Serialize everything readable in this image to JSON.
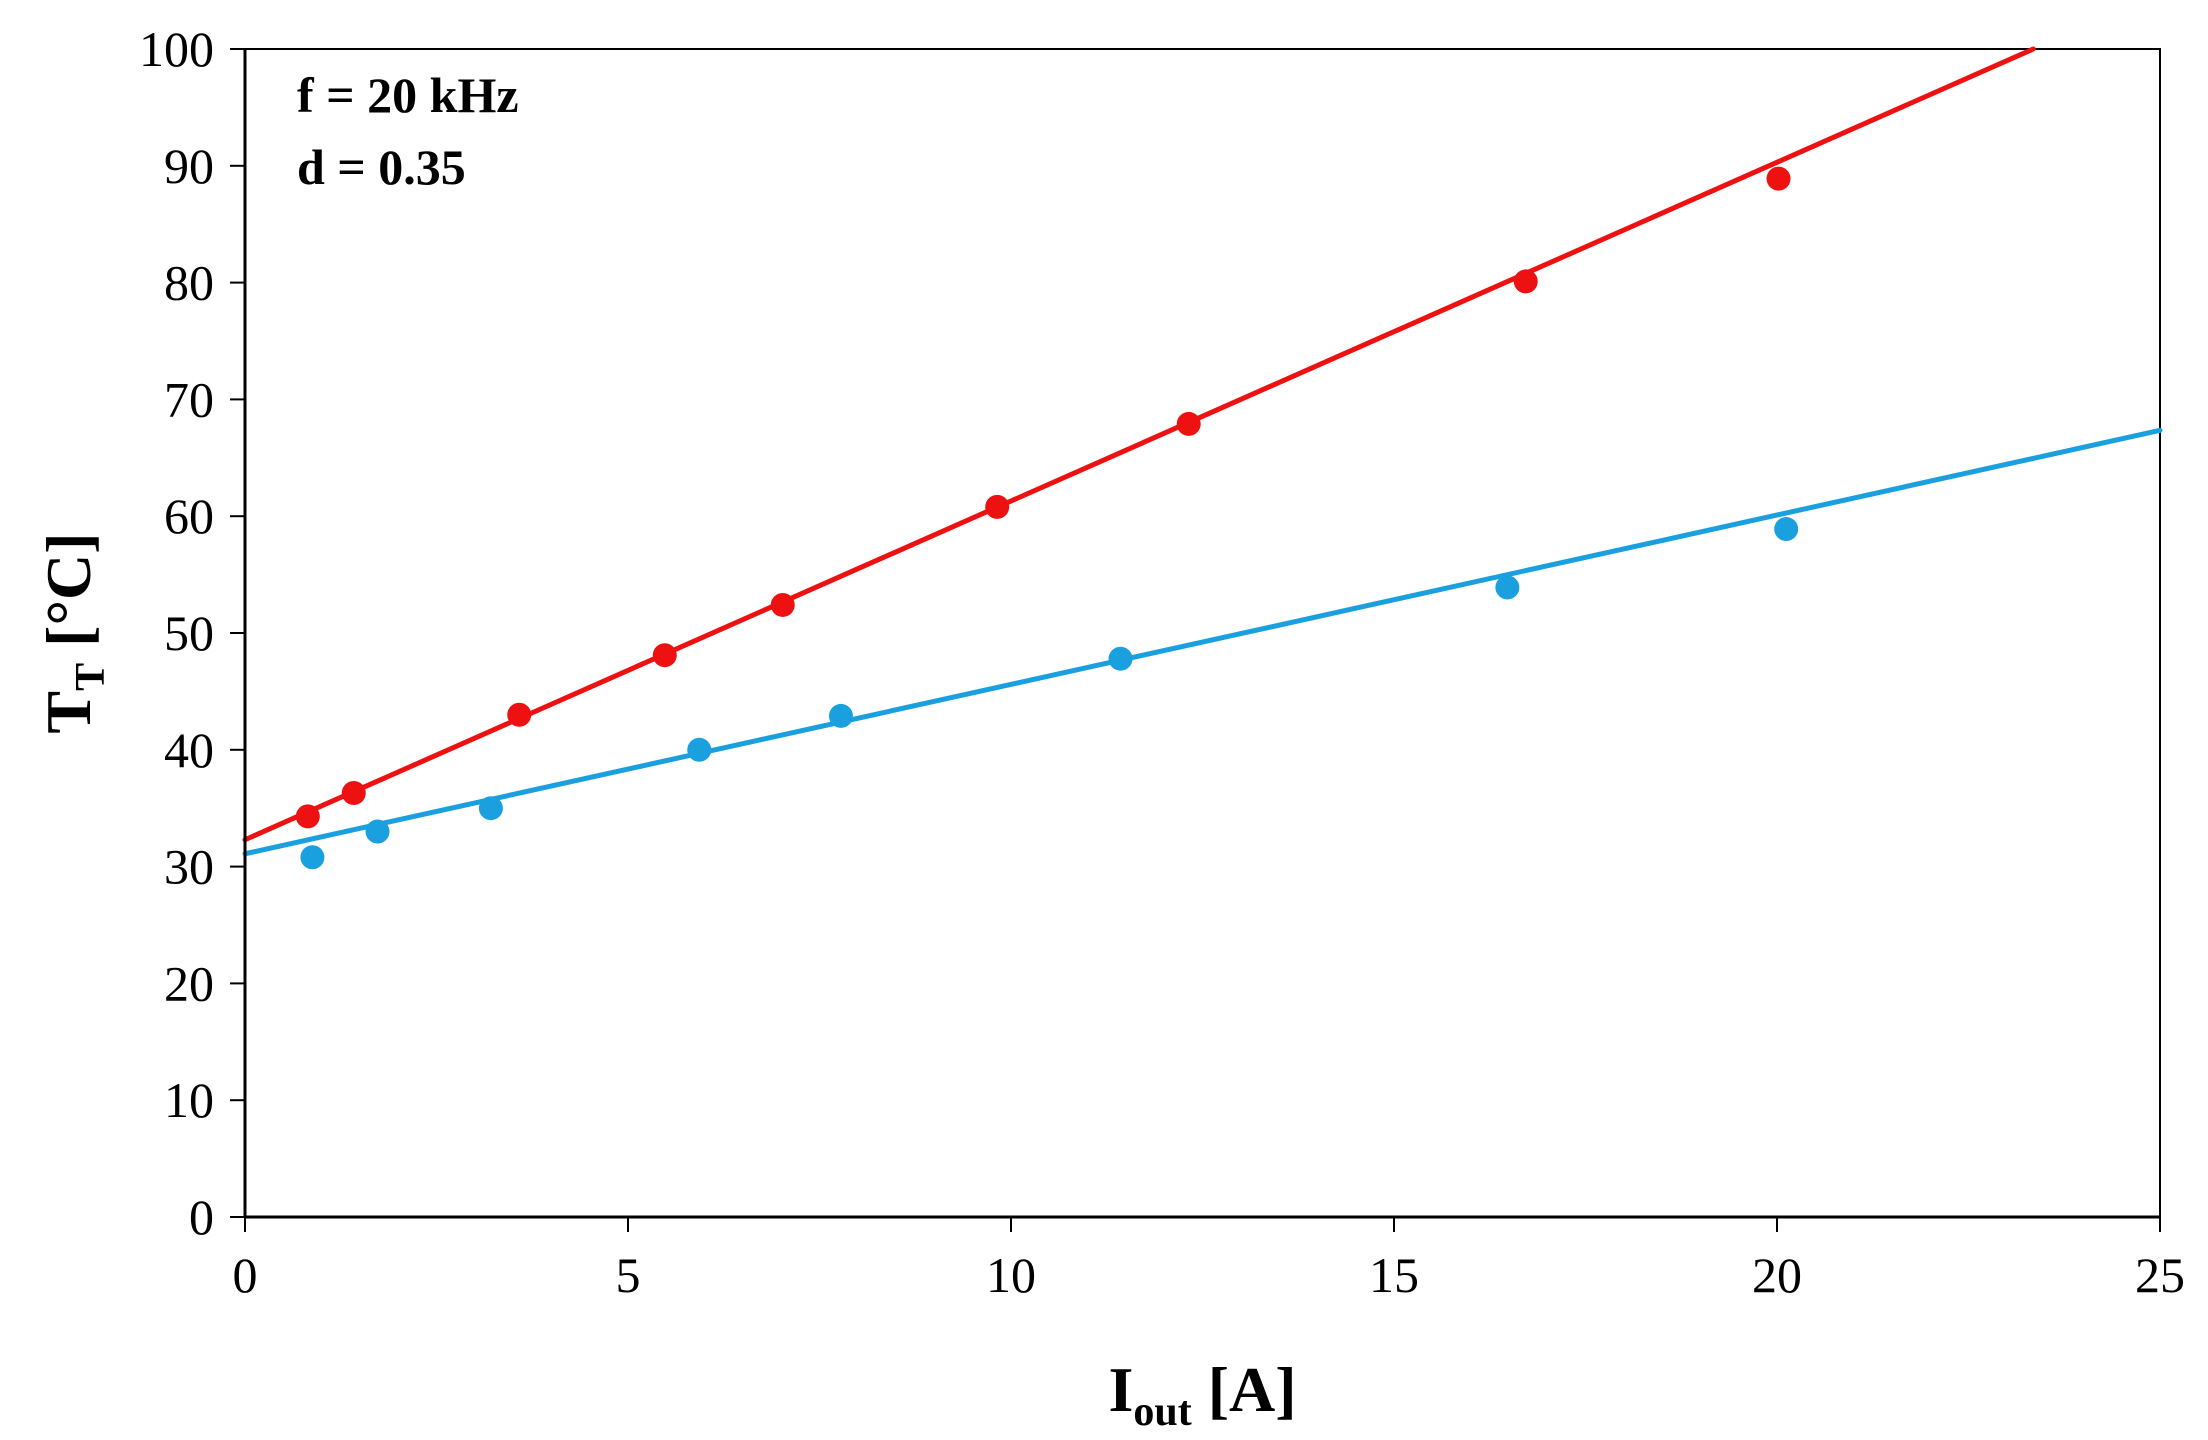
{
  "chart_data": {
    "type": "scatter",
    "title": "",
    "xlabel": {
      "main": "I",
      "sub": "out",
      "unit": " [A]"
    },
    "ylabel": {
      "main": "T",
      "sub": "T",
      "unit": " [°C]"
    },
    "xlim": [
      0,
      25
    ],
    "ylim": [
      0,
      100
    ],
    "xticks": [
      0,
      5,
      10,
      15,
      20,
      25
    ],
    "yticks": [
      0,
      10,
      20,
      30,
      40,
      50,
      60,
      70,
      80,
      90,
      100
    ],
    "grid": false,
    "annotations": [
      "f = 20 kHz",
      "d = 0.35"
    ],
    "series": [
      {
        "name": "red-series",
        "color": "#ee1111",
        "points": [
          [
            0.82,
            34.3
          ],
          [
            1.42,
            36.3
          ],
          [
            3.58,
            43.0
          ],
          [
            5.48,
            48.1
          ],
          [
            7.02,
            52.4
          ],
          [
            9.82,
            60.8
          ],
          [
            12.32,
            67.9
          ],
          [
            16.72,
            80.1
          ],
          [
            20.02,
            88.9
          ]
        ],
        "trendline": {
          "intercept": 32.3,
          "slope": 2.9
        }
      },
      {
        "name": "blue-series",
        "color": "#1a9fdf",
        "points": [
          [
            0.88,
            30.8
          ],
          [
            1.73,
            33.0
          ],
          [
            3.21,
            35.0
          ],
          [
            5.93,
            40.0
          ],
          [
            7.78,
            42.9
          ],
          [
            11.43,
            47.8
          ],
          [
            16.48,
            53.9
          ],
          [
            20.12,
            58.9
          ]
        ],
        "trendline": {
          "intercept": 31.1,
          "slope": 1.45
        }
      }
    ]
  }
}
